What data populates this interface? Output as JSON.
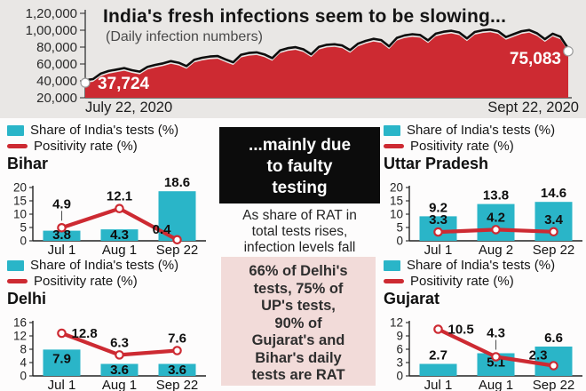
{
  "colors": {
    "red": "#cd2a32",
    "cyan": "#2ab5c8",
    "panel": "#e9e7e5",
    "pink": "#f2dbd9",
    "black": "#0c0c0c"
  },
  "legend": {
    "tests": "Share of India's tests (%)",
    "positivity": "Positivity rate (%)"
  },
  "center": {
    "headline_lines": [
      "...mainly due",
      "to faulty",
      "testing"
    ],
    "note_lines": [
      "As share of RAT in",
      "total tests rises,",
      "infection levels fall"
    ],
    "pink_lines": [
      "66% of Delhi's",
      "tests, 75% of",
      "UP's tests,",
      "90% of",
      "Gujarat's and",
      "Bihar's daily",
      "tests are RAT"
    ]
  },
  "chart_data": [
    {
      "type": "area",
      "title": "India's fresh infections seem to be slowing...",
      "subtitle": "(Daily infection numbers)",
      "ylim": [
        20000,
        120000
      ],
      "y_ticks_values": [
        120000,
        100000,
        80000,
        60000,
        40000,
        20000
      ],
      "y_ticks_labels": [
        "1,20,000",
        "1,00,000",
        "80,000",
        "60,000",
        "40,000",
        "20,000"
      ],
      "x_labels": [
        "July 22, 2020",
        "Sept 22, 2020"
      ],
      "endpoints": {
        "start": "37,724",
        "end": "75,083"
      },
      "values": [
        37724,
        39000,
        45500,
        48500,
        50200,
        52000,
        49500,
        47800,
        53500,
        55800,
        57600,
        60200,
        58300,
        54300,
        61800,
        64200,
        65700,
        66200,
        62300,
        58800,
        67800,
        69900,
        70600,
        68200,
        63800,
        72800,
        75600,
        76700,
        74200,
        68300,
        77200,
        79600,
        80200,
        78700,
        73300,
        80800,
        84200,
        86600,
        85200,
        77800,
        87800,
        90700,
        92100,
        91200,
        84800,
        92700,
        95100,
        96200,
        94200,
        87200,
        94700,
        96700,
        97600,
        95700,
        88700,
        92200,
        95700,
        97100,
        93200,
        86200,
        92700,
        89200,
        75083
      ]
    },
    {
      "type": "combo-bar-line",
      "region": "Bihar",
      "categories": [
        "Jul 1",
        "Aug 1",
        "Sep 22"
      ],
      "ylim": [
        0,
        20
      ],
      "y_ticks": [
        0,
        5,
        10,
        15,
        20
      ],
      "series": [
        {
          "name": "Share of India's tests (%)",
          "kind": "bar",
          "values": [
            3.8,
            4.3,
            18.6
          ],
          "label_pos": [
            "in",
            "in",
            "above"
          ]
        },
        {
          "name": "Positivity rate (%)",
          "kind": "line",
          "values": [
            4.9,
            12.1,
            0.4
          ],
          "label_pos": [
            "above-tick",
            "above",
            "left-above"
          ]
        }
      ]
    },
    {
      "type": "combo-bar-line",
      "region": "Uttar Pradesh",
      "categories": [
        "Jul 1",
        "Aug 2",
        "Sep 22"
      ],
      "ylim": [
        0,
        20
      ],
      "y_ticks": [
        0,
        5,
        10,
        15,
        20
      ],
      "series": [
        {
          "name": "Share of India's tests (%)",
          "kind": "bar",
          "values": [
            9.2,
            13.8,
            14.6
          ],
          "label_pos": [
            "above",
            "above",
            "above"
          ]
        },
        {
          "name": "Positivity rate (%)",
          "kind": "line",
          "values": [
            3.3,
            4.2,
            3.4
          ],
          "label_pos": [
            "above",
            "above",
            "above"
          ]
        }
      ]
    },
    {
      "type": "combo-bar-line",
      "region": "Delhi",
      "categories": [
        "Jul 1",
        "Aug 1",
        "Sep 22"
      ],
      "ylim": [
        0,
        16
      ],
      "y_ticks": [
        0,
        4,
        8,
        12,
        16
      ],
      "series": [
        {
          "name": "Share of India's tests (%)",
          "kind": "bar",
          "values": [
            7.9,
            3.6,
            3.6
          ],
          "label_pos": [
            "in",
            "in",
            "in"
          ]
        },
        {
          "name": "Positivity rate (%)",
          "kind": "line",
          "values": [
            12.8,
            6.3,
            7.6
          ],
          "label_pos": [
            "right",
            "above",
            "above"
          ]
        }
      ]
    },
    {
      "type": "combo-bar-line",
      "region": "Gujarat",
      "categories": [
        "Jul 1",
        "Aug 1",
        "Sep 22"
      ],
      "ylim": [
        0,
        12
      ],
      "y_ticks": [
        0,
        3,
        6,
        9,
        12
      ],
      "series": [
        {
          "name": "Share of India's tests (%)",
          "kind": "bar",
          "values": [
            2.7,
            5.1,
            6.6
          ],
          "label_pos": [
            "above",
            "in",
            "above"
          ]
        },
        {
          "name": "Positivity rate (%)",
          "kind": "line",
          "values": [
            10.5,
            4.3,
            2.3
          ],
          "label_pos": [
            "right",
            "above-tick",
            "left-above"
          ]
        }
      ]
    }
  ]
}
